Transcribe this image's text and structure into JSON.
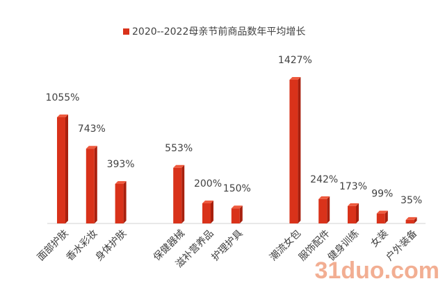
{
  "chart_data": {
    "type": "bar",
    "legend": "2020--2022母亲节前商品数年平均增长",
    "color": "#d9321a",
    "categories": [
      "面部护肤",
      "香水彩妆",
      "身体护肤",
      null,
      "保健器械",
      "滋补营养品",
      "护理护具",
      null,
      "潮流女包",
      "服饰配件",
      "健身训练",
      "女装",
      "户外装备"
    ],
    "values": [
      1055,
      743,
      393,
      null,
      553,
      200,
      150,
      null,
      1427,
      242,
      173,
      99,
      35
    ],
    "value_labels": [
      "1055%",
      "743%",
      "393%",
      null,
      "553%",
      "200%",
      "150%",
      null,
      "1427%",
      "242%",
      "173%",
      "99%",
      "35%"
    ]
  },
  "watermark": "31duo.com"
}
